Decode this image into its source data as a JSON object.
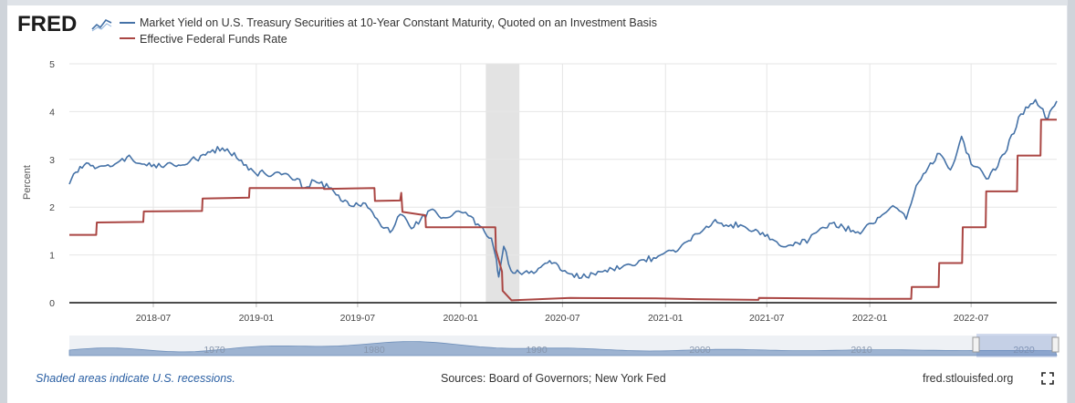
{
  "logo": {
    "text": "FRED"
  },
  "colors": {
    "series1": "#4572a7",
    "series2": "#aa4643",
    "recession": "#e3e3e3",
    "navigator": "#7c9cc6"
  },
  "chart_data": {
    "type": "line",
    "xlabel": "",
    "ylabel": "Percent",
    "ylim": [
      0,
      5
    ],
    "yticks": [
      "0",
      "1",
      "2",
      "3",
      "4",
      "5"
    ],
    "xticks": [
      "2018-07",
      "2019-01",
      "2019-07",
      "2020-01",
      "2020-07",
      "2021-01",
      "2021-07",
      "2022-01",
      "2022-07"
    ],
    "xrange": [
      "2018-02-01",
      "2022-12-01"
    ],
    "grid": true,
    "legend_position": "top-left",
    "recession": {
      "start": "2020-02-15",
      "end": "2020-04-15"
    },
    "series": [
      {
        "name": "Market Yield on U.S. Treasury Securities at 10-Year Constant Maturity, Quoted on an Investment Basis",
        "points": [
          [
            "2018-02-01",
            2.48
          ],
          [
            "2018-02-20",
            2.85
          ],
          [
            "2018-03-15",
            2.87
          ],
          [
            "2018-04-15",
            2.85
          ],
          [
            "2018-05-15",
            3.05
          ],
          [
            "2018-06-15",
            2.9
          ],
          [
            "2018-07-15",
            2.85
          ],
          [
            "2018-08-15",
            2.88
          ],
          [
            "2018-09-15",
            3.0
          ],
          [
            "2018-10-15",
            3.2
          ],
          [
            "2018-11-10",
            3.22
          ],
          [
            "2018-12-01",
            2.98
          ],
          [
            "2018-12-31",
            2.7
          ],
          [
            "2019-01-15",
            2.72
          ],
          [
            "2019-02-15",
            2.68
          ],
          [
            "2019-03-15",
            2.6
          ],
          [
            "2019-03-28",
            2.4
          ],
          [
            "2019-04-15",
            2.55
          ],
          [
            "2019-05-15",
            2.4
          ],
          [
            "2019-06-01",
            2.14
          ],
          [
            "2019-06-20",
            2.02
          ],
          [
            "2019-07-15",
            2.08
          ],
          [
            "2019-08-05",
            1.75
          ],
          [
            "2019-08-28",
            1.47
          ],
          [
            "2019-09-15",
            1.85
          ],
          [
            "2019-10-05",
            1.55
          ],
          [
            "2019-11-08",
            1.94
          ],
          [
            "2019-12-01",
            1.78
          ],
          [
            "2020-01-05",
            1.88
          ],
          [
            "2020-01-15",
            1.82
          ],
          [
            "2020-02-05",
            1.6
          ],
          [
            "2020-02-25",
            1.35
          ],
          [
            "2020-03-05",
            0.9
          ],
          [
            "2020-03-09",
            0.54
          ],
          [
            "2020-03-18",
            1.18
          ],
          [
            "2020-03-31",
            0.67
          ],
          [
            "2020-04-15",
            0.63
          ],
          [
            "2020-05-15",
            0.65
          ],
          [
            "2020-06-08",
            0.88
          ],
          [
            "2020-07-01",
            0.66
          ],
          [
            "2020-08-04",
            0.52
          ],
          [
            "2020-09-15",
            0.68
          ],
          [
            "2020-10-15",
            0.74
          ],
          [
            "2020-11-15",
            0.88
          ],
          [
            "2020-12-15",
            0.93
          ],
          [
            "2021-01-15",
            1.1
          ],
          [
            "2021-02-15",
            1.3
          ],
          [
            "2021-03-15",
            1.6
          ],
          [
            "2021-03-31",
            1.74
          ],
          [
            "2021-04-15",
            1.6
          ],
          [
            "2021-05-15",
            1.63
          ],
          [
            "2021-06-15",
            1.5
          ],
          [
            "2021-07-15",
            1.3
          ],
          [
            "2021-08-04",
            1.17
          ],
          [
            "2021-09-15",
            1.33
          ],
          [
            "2021-10-21",
            1.66
          ],
          [
            "2021-11-15",
            1.58
          ],
          [
            "2021-12-15",
            1.44
          ],
          [
            "2022-01-15",
            1.78
          ],
          [
            "2022-02-15",
            2.0
          ],
          [
            "2022-03-07",
            1.75
          ],
          [
            "2022-03-25",
            2.45
          ],
          [
            "2022-04-15",
            2.82
          ],
          [
            "2022-05-06",
            3.12
          ],
          [
            "2022-05-25",
            2.78
          ],
          [
            "2022-06-14",
            3.48
          ],
          [
            "2022-07-01",
            2.9
          ],
          [
            "2022-08-01",
            2.6
          ],
          [
            "2022-08-30",
            3.12
          ],
          [
            "2022-09-28",
            3.95
          ],
          [
            "2022-10-24",
            4.25
          ],
          [
            "2022-11-15",
            3.85
          ],
          [
            "2022-12-01",
            4.22
          ]
        ]
      },
      {
        "name": "Effective Federal Funds Rate",
        "points": [
          [
            "2018-02-01",
            1.42
          ],
          [
            "2018-03-21",
            1.42
          ],
          [
            "2018-03-22",
            1.68
          ],
          [
            "2018-06-13",
            1.69
          ],
          [
            "2018-06-14",
            1.91
          ],
          [
            "2018-09-26",
            1.92
          ],
          [
            "2018-09-27",
            2.18
          ],
          [
            "2018-12-19",
            2.2
          ],
          [
            "2018-12-20",
            2.4
          ],
          [
            "2019-05-01",
            2.4
          ],
          [
            "2019-05-02",
            2.38
          ],
          [
            "2019-07-31",
            2.4
          ],
          [
            "2019-08-01",
            2.13
          ],
          [
            "2019-09-15",
            2.14
          ],
          [
            "2019-09-17",
            2.3
          ],
          [
            "2019-09-19",
            1.9
          ],
          [
            "2019-10-30",
            1.83
          ],
          [
            "2019-10-31",
            1.58
          ],
          [
            "2020-03-03",
            1.58
          ],
          [
            "2020-03-04",
            1.1
          ],
          [
            "2020-03-15",
            0.65
          ],
          [
            "2020-03-16",
            0.25
          ],
          [
            "2020-04-01",
            0.05
          ],
          [
            "2020-07-15",
            0.1
          ],
          [
            "2020-12-15",
            0.09
          ],
          [
            "2021-03-15",
            0.07
          ],
          [
            "2021-06-16",
            0.06
          ],
          [
            "2021-06-17",
            0.1
          ],
          [
            "2021-12-31",
            0.08
          ],
          [
            "2022-03-16",
            0.08
          ],
          [
            "2022-03-17",
            0.33
          ],
          [
            "2022-05-04",
            0.33
          ],
          [
            "2022-05-05",
            0.83
          ],
          [
            "2022-06-15",
            0.83
          ],
          [
            "2022-06-16",
            1.58
          ],
          [
            "2022-07-27",
            1.58
          ],
          [
            "2022-07-28",
            2.33
          ],
          [
            "2022-09-21",
            2.33
          ],
          [
            "2022-09-22",
            3.08
          ],
          [
            "2022-11-02",
            3.08
          ],
          [
            "2022-11-03",
            3.83
          ],
          [
            "2022-12-01",
            3.83
          ]
        ]
      }
    ]
  },
  "navigator": {
    "labels": [
      "1970",
      "1980",
      "1990",
      "2000",
      "2010",
      "2020"
    ]
  },
  "footer": {
    "recession_note": "Shaded areas indicate U.S. recessions.",
    "sources": "Sources: Board of Governors; New York Fed",
    "site": "fred.stlouisfed.org"
  },
  "icons": {
    "logo_graph": "line-graph-icon",
    "fullscreen": "fullscreen-icon"
  }
}
